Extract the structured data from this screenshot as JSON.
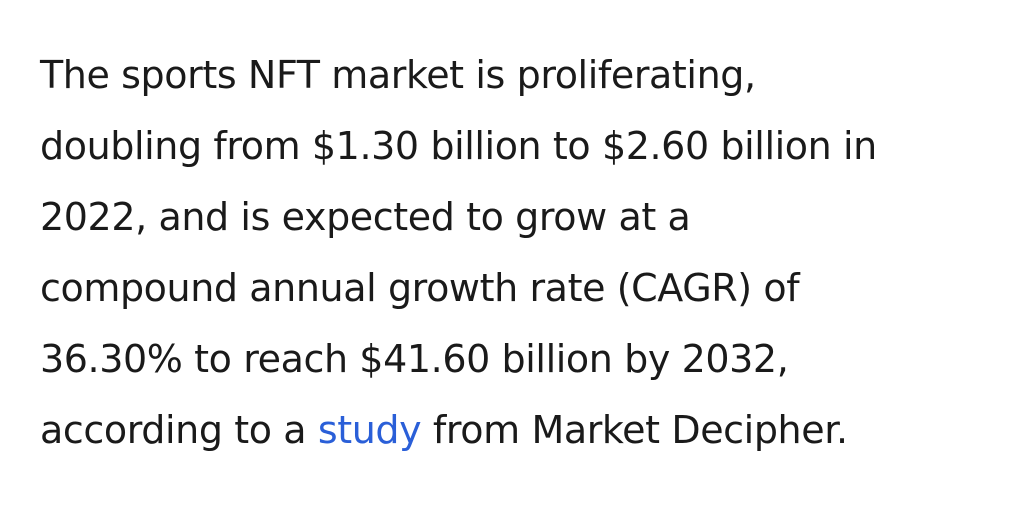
{
  "article": {
    "paragraph": {
      "line1": "The sports NFT market is proliferating,",
      "line2": "doubling from $1.30 billion to $2.60 billion in",
      "line3": "2022, and is expected to grow at a",
      "line4": "compound annual growth rate (CAGR) of",
      "line5": "36.30% to reach $41.60 billion by 2032,",
      "line6_before_link": "according to a ",
      "link_text": "study",
      "line6_after_link": " from Market Decipher."
    }
  },
  "colors": {
    "text": "#1a1a1a",
    "link": "#2a5fd8",
    "background": "#ffffff"
  }
}
